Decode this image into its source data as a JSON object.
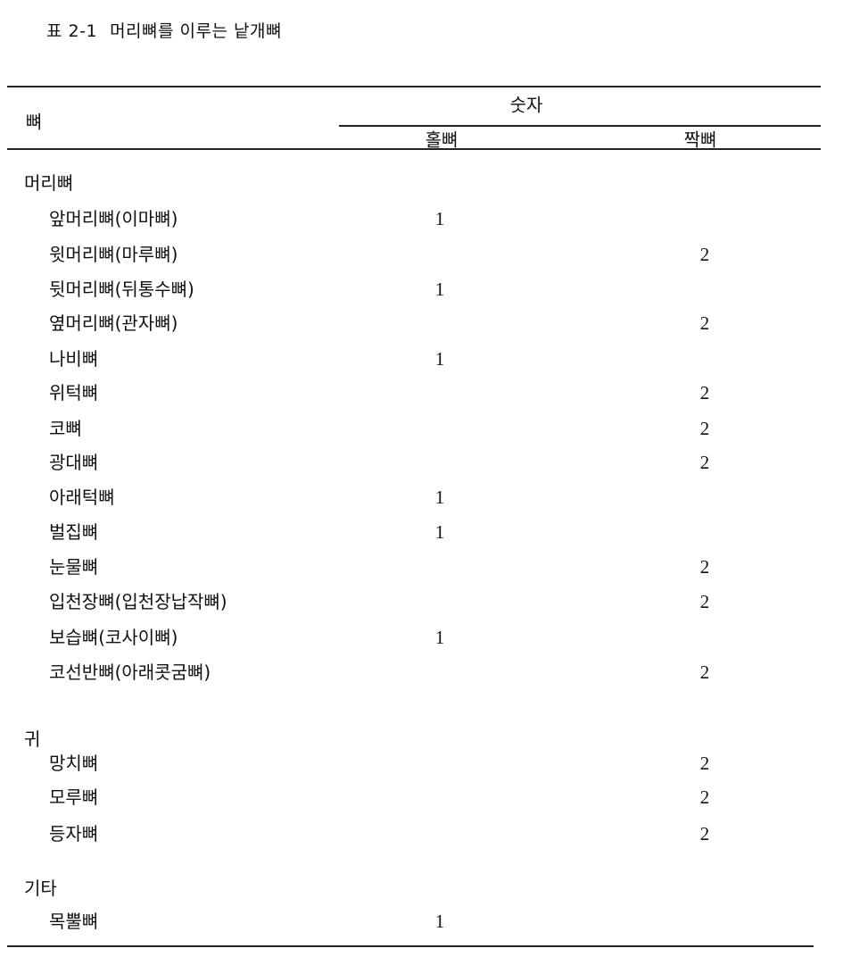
{
  "caption": {
    "number": "표 2-1",
    "title": "머리뼈를 이루는 낱개뼈"
  },
  "header": {
    "bone": "뼈",
    "count": "숫자",
    "odd": "홀뼈",
    "paired": "짝뼈"
  },
  "rows": [
    {
      "type": "group",
      "name": "머리뼈"
    },
    {
      "type": "item",
      "name": "앞머리뼈(이마뼈)",
      "odd": "1",
      "paired": ""
    },
    {
      "type": "item",
      "name": "윗머리뼈(마루뼈)",
      "odd": "",
      "paired": "2"
    },
    {
      "type": "item",
      "name": "뒷머리뼈(뒤통수뼈)",
      "odd": "1",
      "paired": ""
    },
    {
      "type": "item",
      "name": "옆머리뼈(관자뼈)",
      "odd": "",
      "paired": "2"
    },
    {
      "type": "item",
      "name": "나비뼈",
      "odd": "1",
      "paired": ""
    },
    {
      "type": "item",
      "name": "위턱뼈",
      "odd": "",
      "paired": "2"
    },
    {
      "type": "item",
      "name": "코뼈",
      "odd": "",
      "paired": "2"
    },
    {
      "type": "item",
      "name": "광대뼈",
      "odd": "",
      "paired": "2"
    },
    {
      "type": "item",
      "name": "아래턱뼈",
      "odd": "1",
      "paired": ""
    },
    {
      "type": "item",
      "name": "벌집뼈",
      "odd": "1",
      "paired": ""
    },
    {
      "type": "item",
      "name": "눈물뼈",
      "odd": "",
      "paired": "2"
    },
    {
      "type": "item",
      "name": "입천장뼈(입천장납작뼈)",
      "odd": "",
      "paired": "2"
    },
    {
      "type": "item",
      "name": "보습뼈(코사이뼈)",
      "odd": "1",
      "paired": ""
    },
    {
      "type": "item",
      "name": "코선반뼈(아래콧굼뼈)",
      "odd": "",
      "paired": "2"
    },
    {
      "type": "group",
      "name": "귀"
    },
    {
      "type": "item",
      "name": "망치뼈",
      "odd": "",
      "paired": "2"
    },
    {
      "type": "item",
      "name": "모루뼈",
      "odd": "",
      "paired": "2"
    },
    {
      "type": "item",
      "name": "등자뼈",
      "odd": "",
      "paired": "2"
    },
    {
      "type": "group",
      "name": "기타"
    },
    {
      "type": "item",
      "name": "목뿔뼈",
      "odd": "1",
      "paired": ""
    }
  ]
}
